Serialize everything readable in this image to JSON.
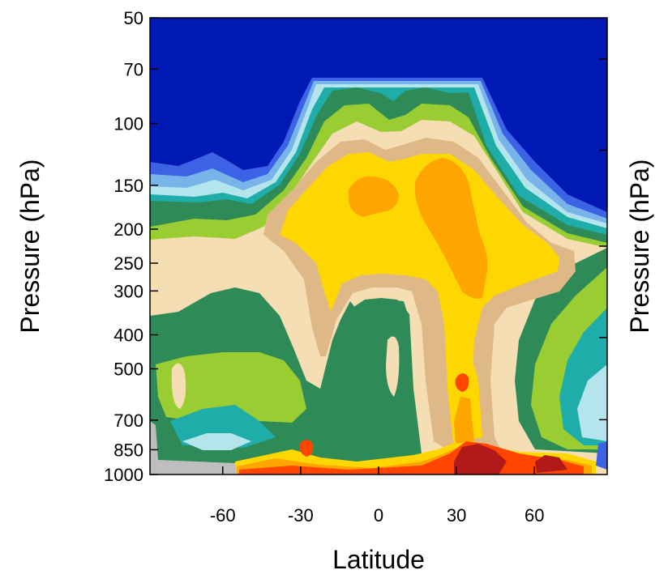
{
  "chart_data": {
    "type": "contour",
    "xlabel": "Latitude",
    "ylabel": "Pressure (hPa)",
    "ylabel_right": "Pressure (hPa)",
    "x_ticks": [
      -60,
      -30,
      0,
      30,
      60
    ],
    "x_tick_labels": [
      "-60",
      "-30",
      "0",
      "30",
      "60"
    ],
    "y_ticks": [
      50,
      70,
      100,
      150,
      200,
      250,
      300,
      400,
      500,
      700,
      850,
      1000
    ],
    "y_tick_labels": [
      "50",
      "70",
      "100",
      "150",
      "200",
      "250",
      "300",
      "400",
      "500",
      "700",
      "850",
      "1000"
    ],
    "xlim": [
      -88,
      88
    ],
    "ylim": [
      1000,
      50
    ],
    "y_scale": "log",
    "y_inverted": true,
    "grid": false,
    "legend": "none",
    "colors": {
      "level_0": "#0018b4",
      "level_1": "#3c63e6",
      "level_2": "#78b4ea",
      "level_3": "#b4e4ec",
      "level_4": "#1fada9",
      "level_5": "#2e8b57",
      "level_6": "#9acd32",
      "level_7": "#f5deb3",
      "level_8": "#deb887",
      "level_9": "#ffd700",
      "level_10": "#ffa500",
      "level_11": "#ff4500",
      "level_12": "#b21a1a",
      "missing": "#bebebe"
    }
  }
}
